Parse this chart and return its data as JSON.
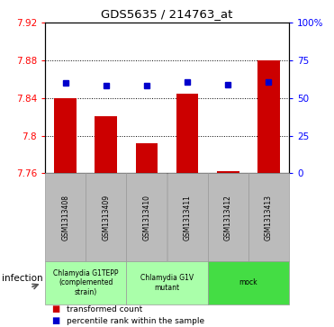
{
  "title": "GDS5635 / 214763_at",
  "samples": [
    "GSM1313408",
    "GSM1313409",
    "GSM1313410",
    "GSM1313411",
    "GSM1313412",
    "GSM1313413"
  ],
  "bar_values": [
    7.84,
    7.821,
    7.792,
    7.845,
    7.762,
    7.88
  ],
  "percentile_values": [
    7.856,
    7.853,
    7.853,
    7.857,
    7.854,
    7.857
  ],
  "bar_color": "#cc0000",
  "percentile_color": "#0000cc",
  "y_min": 7.76,
  "y_max": 7.92,
  "y_ticks_left": [
    7.76,
    7.8,
    7.84,
    7.88,
    7.92
  ],
  "y_ticks_right": [
    0,
    25,
    50,
    75,
    100
  ],
  "groups": [
    {
      "label": "Chlamydia G1TEPP\n(complemented\nstrain)",
      "cols": [
        0,
        1
      ],
      "color": "#aaffaa"
    },
    {
      "label": "Chlamydia G1V\nmutant",
      "cols": [
        2,
        3
      ],
      "color": "#aaffaa"
    },
    {
      "label": "mock",
      "cols": [
        4,
        5
      ],
      "color": "#44dd44"
    }
  ],
  "group_factor_label": "infection",
  "legend_bar_label": "transformed count",
  "legend_percentile_label": "percentile rank within the sample",
  "bar_width": 0.55,
  "bg_color": "#ffffff",
  "sample_label_area_color": "#bbbbbb"
}
